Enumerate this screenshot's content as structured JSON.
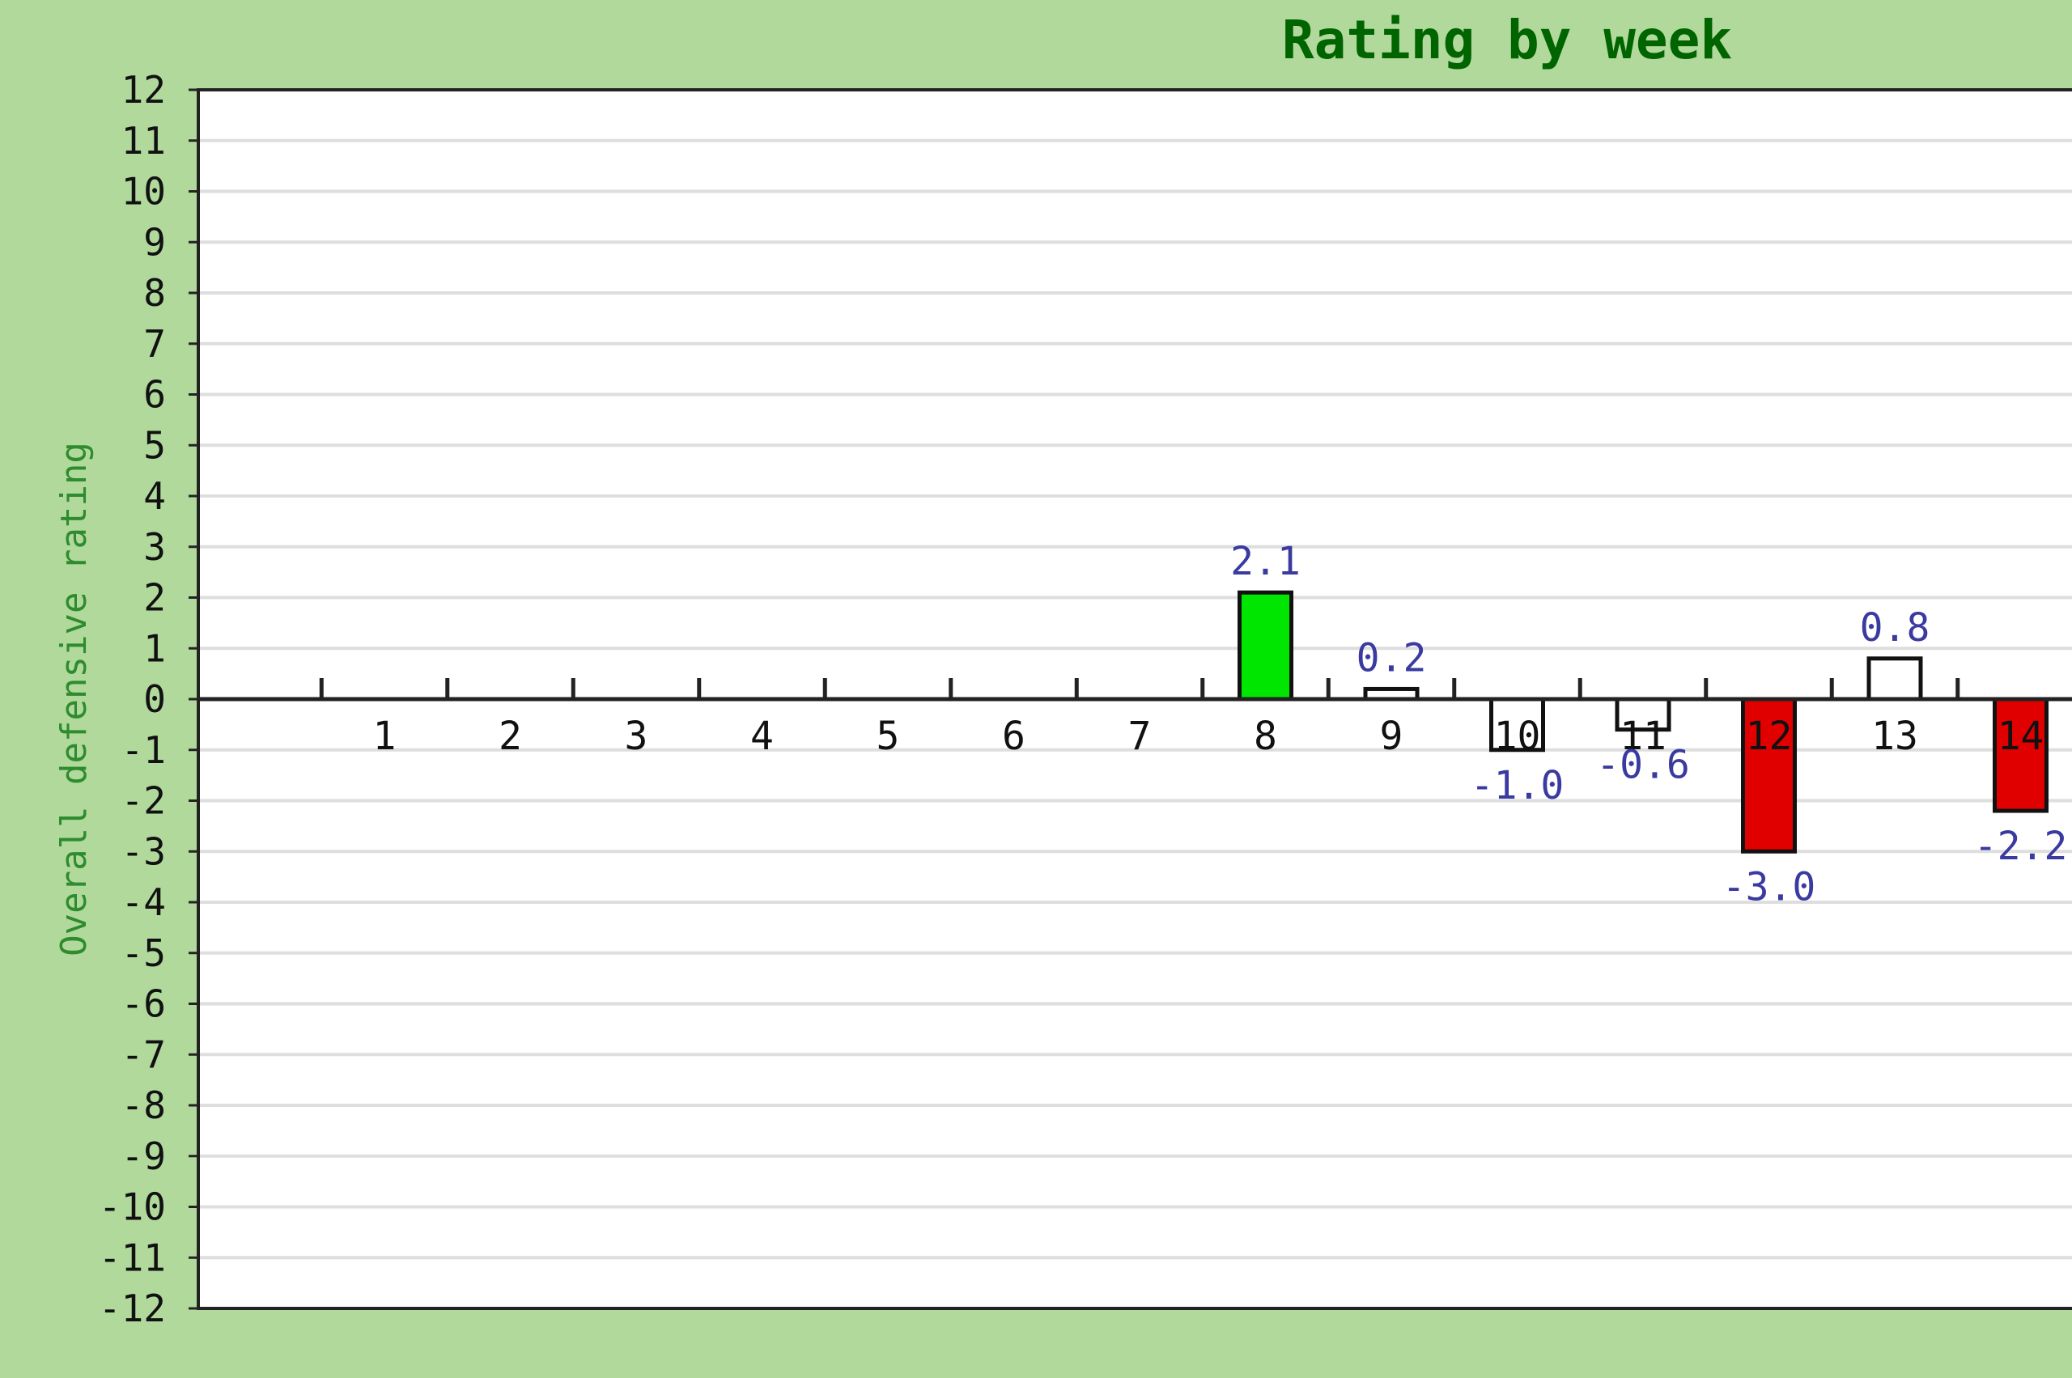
{
  "chart_data": {
    "type": "bar",
    "title": "Rating by week",
    "xlabel": "",
    "ylabel": "Overall defensive rating",
    "categories": [
      "1",
      "2",
      "3",
      "4",
      "5",
      "6",
      "7",
      "8",
      "9",
      "10",
      "11",
      "12",
      "13",
      "14"
    ],
    "values": [
      null,
      null,
      null,
      null,
      null,
      null,
      null,
      2.1,
      0.2,
      -1.0,
      -0.6,
      -3.0,
      0.8,
      -2.2
    ],
    "value_labels": [
      "",
      "",
      "",
      "",
      "",
      "",
      "",
      "2.1",
      "0.2",
      "-1.0",
      "-0.6",
      "-3.0",
      "0.8",
      "-2.2"
    ],
    "ylim": [
      -12,
      12
    ],
    "yticks": [
      "12",
      "11",
      "10",
      "9",
      "8",
      "7",
      "6",
      "5",
      "4",
      "3",
      "2",
      "1",
      "0",
      "-1",
      "-2",
      "-3",
      "-4",
      "-5",
      "-6",
      "-7",
      "-8",
      "-9",
      "-10",
      "-11",
      "-12"
    ],
    "grid": true,
    "legend": "none",
    "colors": {
      "background": "#b1d99c",
      "plot_bg": "#ffffff",
      "grid": "#dedede",
      "axis": "#222222",
      "title": "#006400",
      "ylabel": "#2e8b2e",
      "value_label": "#3a3aa0",
      "positive_strong": "#00e600",
      "negative_strong": "#e00000",
      "neutral": "#ffffff",
      "bar_edge": "#111111"
    }
  }
}
